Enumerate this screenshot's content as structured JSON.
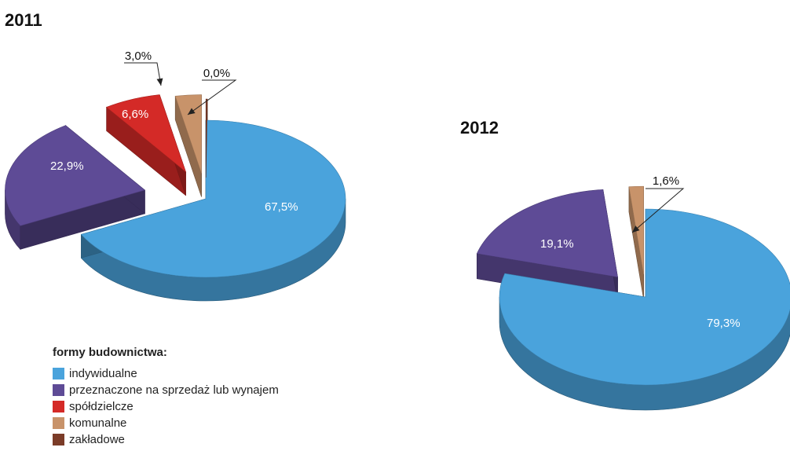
{
  "chart_data": [
    {
      "type": "pie",
      "title": "2011",
      "slices": [
        {
          "name": "indywidualne",
          "value": 67.5,
          "label": "67,5%"
        },
        {
          "name": "przeznaczone na sprzedaż lub wynajem",
          "value": 22.9,
          "label": "22,9%"
        },
        {
          "name": "spółdzielcze",
          "value": 6.6,
          "label": "6,6%"
        },
        {
          "name": "komunalne",
          "value": 3.0,
          "label": "3,0%"
        },
        {
          "name": "zakładowe",
          "value": 0.0,
          "label": "0,0%"
        }
      ]
    },
    {
      "type": "pie",
      "title": "2012",
      "slices": [
        {
          "name": "indywidualne",
          "value": 79.3,
          "label": "79,3%"
        },
        {
          "name": "przeznaczone na sprzedaż lub wynajem",
          "value": 19.1,
          "label": "19,1%"
        },
        {
          "name": "spółdzielcze",
          "value": 0.0,
          "label": ""
        },
        {
          "name": "komunalne",
          "value": 1.6,
          "label": "1,6%"
        },
        {
          "name": "zakładowe",
          "value": 0.0,
          "label": ""
        }
      ]
    }
  ],
  "legend": {
    "title": "formy budownictwa:",
    "placement": "bottom-left",
    "items": [
      {
        "label": "indywidualne",
        "color": "#4aa3dc"
      },
      {
        "label": "przeznaczone na sprzedaż lub wynajem",
        "color": "#5e4b96"
      },
      {
        "label": "spółdzielcze",
        "color": "#d42a27"
      },
      {
        "label": "komunalne",
        "color": "#c8936a"
      },
      {
        "label": "zakładowe",
        "color": "#7b3c28"
      }
    ]
  }
}
